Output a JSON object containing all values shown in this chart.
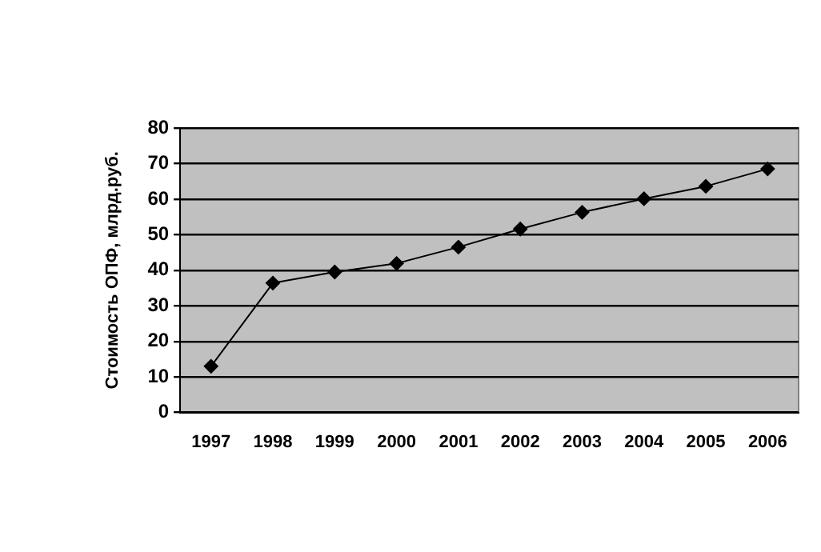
{
  "chart_data": {
    "type": "line",
    "ylabel": "Стоимость ОПФ, млрд.руб.",
    "categories": [
      "1997",
      "1998",
      "1999",
      "2000",
      "2001",
      "2002",
      "2003",
      "2004",
      "2005",
      "2006"
    ],
    "series": [
      {
        "color": "#000000",
        "values": [
          13,
          36.4,
          39.5,
          41.9,
          46.5,
          51.6,
          56.3,
          60.1,
          63.6,
          68.5
        ]
      }
    ],
    "ylim": [
      0,
      80
    ],
    "yticks": [
      0,
      10,
      20,
      30,
      40,
      50,
      60,
      70,
      80
    ],
    "grid": "y",
    "legend": false,
    "marker": "diamond",
    "line_style": "solid"
  }
}
